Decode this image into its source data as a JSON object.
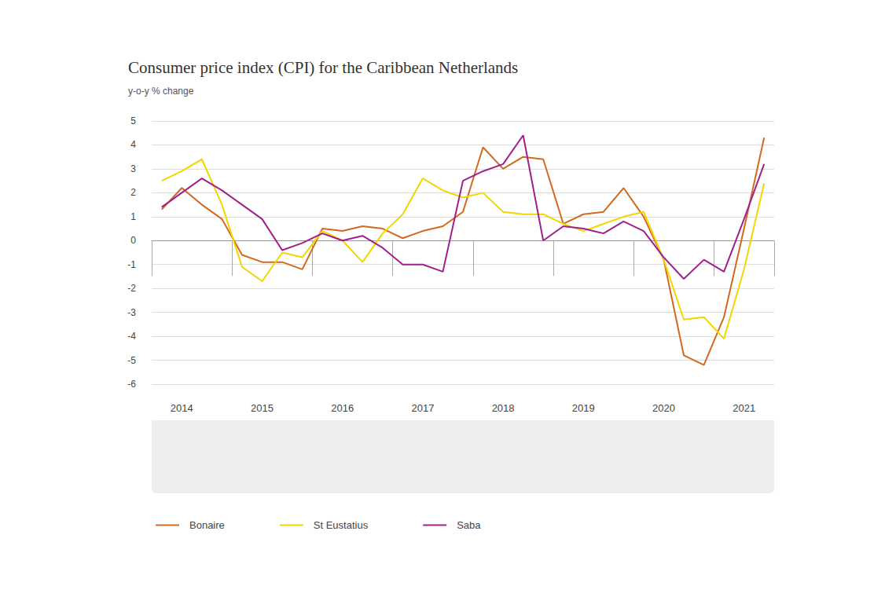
{
  "chart_data": {
    "type": "line",
    "title": "Consumer price index (CPI) for the Caribbean Netherlands",
    "subtitle": "y-o-y % change",
    "categories": [
      null,
      "2014",
      null,
      null,
      null,
      "2015",
      null,
      null,
      null,
      "2016",
      null,
      null,
      null,
      "2017",
      null,
      null,
      null,
      "2018",
      null,
      null,
      null,
      "2019",
      null,
      null,
      null,
      "2020",
      null,
      null,
      null,
      "2021",
      null
    ],
    "series": [
      {
        "name": "Bonaire",
        "color": "#d2691e",
        "values": [
          1.3,
          2.2,
          1.5,
          0.9,
          -0.6,
          -0.9,
          -0.9,
          -1.2,
          0.5,
          0.4,
          0.6,
          0.5,
          0.1,
          0.4,
          0.6,
          1.2,
          3.9,
          3.0,
          3.5,
          3.4,
          0.7,
          1.1,
          1.2,
          2.2,
          1.0,
          -0.8,
          -4.8,
          -5.2,
          -3.2,
          0.5,
          4.3
        ]
      },
      {
        "name": "St Eustatius",
        "color": "#f2d600",
        "values": [
          2.5,
          2.9,
          3.4,
          1.5,
          -1.1,
          -1.7,
          -0.5,
          -0.7,
          0.4,
          0.0,
          -0.9,
          0.3,
          1.1,
          2.6,
          2.1,
          1.8,
          2.0,
          1.2,
          1.1,
          1.1,
          0.7,
          0.4,
          0.7,
          1.0,
          1.2,
          -0.8,
          -3.3,
          -3.2,
          -4.1,
          -1.2,
          2.4
        ]
      },
      {
        "name": "Saba",
        "color": "#a0208c",
        "values": [
          1.4,
          2.0,
          2.6,
          2.1,
          1.5,
          0.9,
          -0.4,
          -0.1,
          0.3,
          0.0,
          0.2,
          -0.3,
          -1.0,
          -1.0,
          -1.3,
          2.5,
          2.9,
          3.2,
          4.4,
          0.0,
          0.6,
          0.5,
          0.3,
          0.8,
          0.4,
          -0.7,
          -1.6,
          -0.8,
          -1.3,
          0.9,
          3.2
        ]
      }
    ],
    "ylim": [
      -6,
      5
    ],
    "yticks": [
      -6,
      -5,
      -4,
      -3,
      -2,
      -1,
      0,
      1,
      2,
      3,
      4,
      5
    ],
    "grid": true,
    "legend": "bottom"
  }
}
